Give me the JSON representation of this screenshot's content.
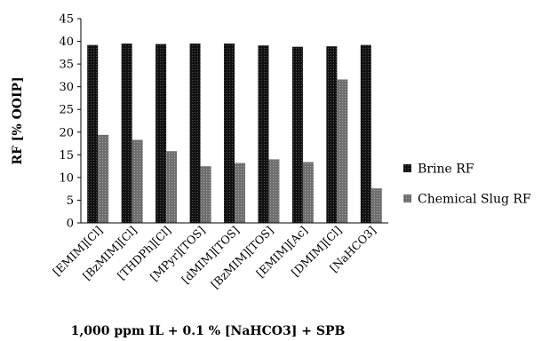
{
  "chart_data": {
    "type": "bar",
    "title": "",
    "xlabel": "1,000 ppm IL + 0.1 % [NaHCO3] + SPB",
    "ylabel": "RF [% OOIP]",
    "ylim": [
      0,
      45
    ],
    "yticks": [
      0,
      5,
      10,
      15,
      20,
      25,
      30,
      35,
      40,
      45
    ],
    "grid": false,
    "legend_position": "right",
    "categories": [
      "[EMIM][Cl]",
      "[BzMIM][Cl]",
      "[THDPh][Cl]",
      "[MPyr][TOS]",
      "[dMIM][TOS]",
      "[BzMIM][TOS]",
      "[EMIM][Ac]",
      "[DMIM][Cl]",
      "[NaHCO3]"
    ],
    "series": [
      {
        "name": "Brine RF",
        "color": "#111111",
        "values": [
          39.2,
          39.5,
          39.4,
          39.5,
          39.5,
          39.1,
          38.8,
          38.9,
          39.2
        ]
      },
      {
        "name": "Chemical Slug RF",
        "color": "#7a7a7a",
        "values": [
          19.4,
          18.3,
          15.8,
          12.5,
          13.2,
          14.0,
          13.4,
          31.6,
          7.6
        ]
      }
    ]
  }
}
